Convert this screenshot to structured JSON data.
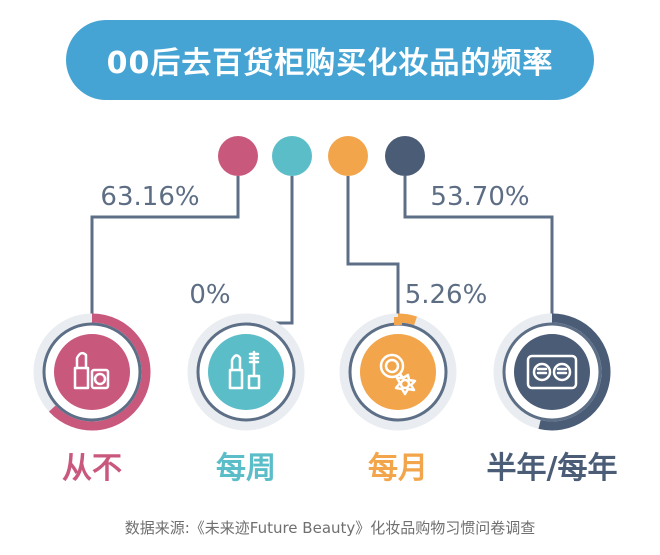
{
  "title": "00后去百货柜购买化妆品的频率",
  "source": "数据来源:《未来迹Future Beauty》化妆品购物习惯问卷调查",
  "colors": {
    "title_bg": "#45a4d4",
    "line": "#5d6f86",
    "track": "#e9ecf0",
    "text_value": "#5c6d84"
  },
  "chart_data": {
    "type": "donut-infographic",
    "title": "00后去百货柜购买化妆品的频率",
    "categories": [
      "从不",
      "每周",
      "每月",
      "半年/每年"
    ],
    "series": [
      {
        "values": [
          63.16,
          0,
          5.26,
          53.7
        ],
        "labels": [
          "63.16%",
          "0%",
          "5.26%",
          "53.70%"
        ]
      }
    ],
    "items": [
      {
        "label": "从不",
        "value": 63.16,
        "value_label": "63.16%",
        "color": "#c9587d",
        "icon": "lipstick-icon"
      },
      {
        "label": "每周",
        "value": 0,
        "value_label": "0%",
        "color": "#5bbdc8",
        "icon": "mascara-icon"
      },
      {
        "label": "每月",
        "value": 5.26,
        "value_label": "5.26%",
        "color": "#f2a54a",
        "icon": "powder-compact-icon"
      },
      {
        "label": "半年/每年",
        "value": 53.7,
        "value_label": "53.70%",
        "color": "#4b5c76",
        "icon": "eyeshadow-palette-icon"
      }
    ]
  }
}
